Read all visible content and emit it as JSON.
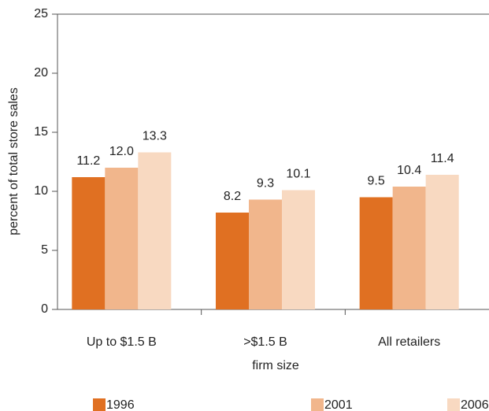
{
  "chart_data": {
    "type": "bar",
    "categories": [
      "Up to $1.5 B",
      ">$1.5 B",
      "All retailers"
    ],
    "series": [
      {
        "name": "1996",
        "color": "#e07022",
        "values": [
          11.2,
          8.2,
          9.5
        ],
        "value_labels": [
          "11.2",
          "8.2",
          "9.5"
        ]
      },
      {
        "name": "2001",
        "color": "#f1b68c",
        "values": [
          12,
          9.3,
          10.4
        ],
        "value_labels": [
          "12.0",
          "9.3",
          "10.4"
        ]
      },
      {
        "name": "2006",
        "color": "#f8d9c1",
        "values": [
          13.3,
          10.1,
          11.4
        ],
        "value_labels": [
          "13.3",
          "10.1",
          "11.4"
        ]
      }
    ],
    "xlabel": "firm size",
    "ylabel": "percent of total store sales",
    "ylim": [
      0,
      25
    ],
    "yticks": [
      0,
      5,
      10,
      15,
      20,
      25
    ],
    "grid": false,
    "legend": "bottom"
  }
}
